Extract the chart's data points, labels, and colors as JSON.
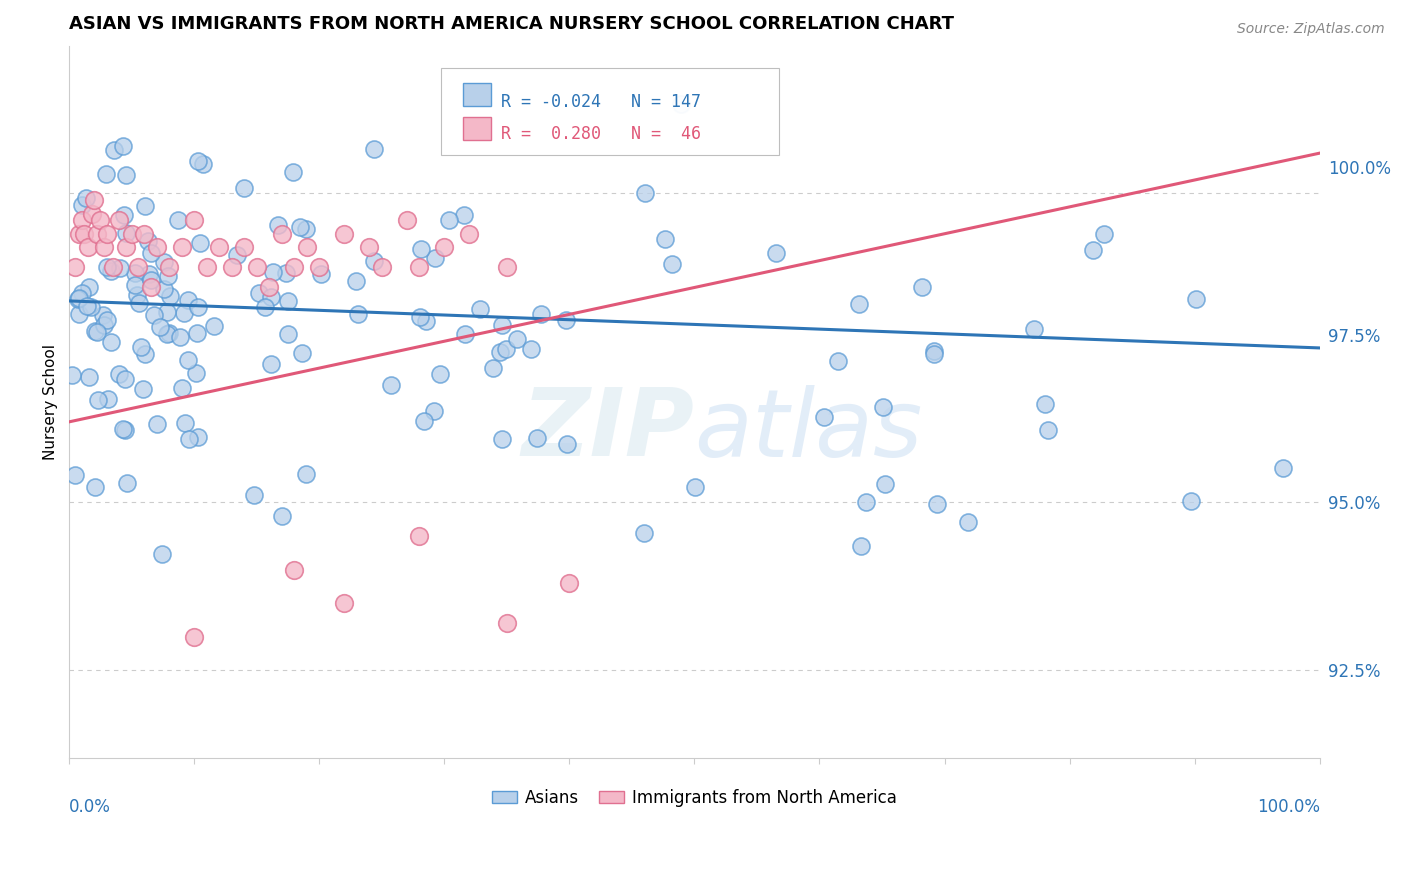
{
  "title": "ASIAN VS IMMIGRANTS FROM NORTH AMERICA NURSERY SCHOOL CORRELATION CHART",
  "source": "Source: ZipAtlas.com",
  "ylabel": "Nursery School",
  "legend_label_1": "Asians",
  "legend_label_2": "Immigrants from North America",
  "r1": -0.024,
  "n1": 147,
  "r2": 0.28,
  "n2": 46,
  "color_asian_face": "#b8d0ea",
  "color_asian_edge": "#5b9bd5",
  "color_immig_face": "#f4b8c8",
  "color_immig_edge": "#e07090",
  "color_line_asian": "#2e75b6",
  "color_line_immig": "#e05878",
  "right_yticks": [
    92.5,
    95.0,
    97.5,
    100.0
  ],
  "right_ytick_labels": [
    "92.5%",
    "95.0%",
    "97.5%",
    "100.0%"
  ],
  "ymin": 91.2,
  "ymax": 101.8,
  "xmin": 0.0,
  "xmax": 100.0,
  "dashed_line_y1": 99.6,
  "dashed_line_y2": 95.0,
  "dashed_line_y3": 92.5,
  "blue_trend_y0": 98.0,
  "blue_trend_y100": 97.3,
  "pink_trend_y0": 96.2,
  "pink_trend_y100": 100.2
}
